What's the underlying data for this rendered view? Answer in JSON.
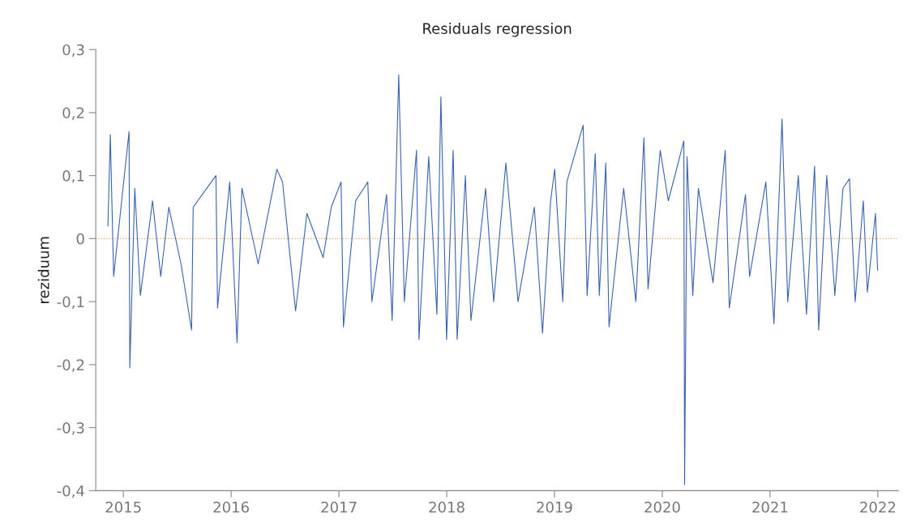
{
  "chart_data": {
    "type": "line",
    "title": "Residuals regression",
    "ylabel": "reziduum",
    "series": [
      {
        "color": "#3a62ad",
        "x": [
          2014.857,
          2014.879,
          2014.91,
          2015.053,
          2015.06,
          2015.106,
          2015.158,
          2015.271,
          2015.347,
          2015.422,
          2015.535,
          2015.633,
          2015.648,
          2015.859,
          2015.874,
          2015.987,
          2016.055,
          2016.1,
          2016.251,
          2016.424,
          2016.477,
          2016.598,
          2016.703,
          2016.854,
          2016.929,
          2017.02,
          2017.042,
          2017.155,
          2017.268,
          2017.306,
          2017.442,
          2017.494,
          2017.555,
          2017.607,
          2017.72,
          2017.743,
          2017.833,
          2017.909,
          2017.946,
          2017.999,
          2018.06,
          2018.097,
          2018.173,
          2018.225,
          2018.361,
          2018.436,
          2018.549,
          2018.662,
          2018.813,
          2018.889,
          2018.964,
          2019.002,
          2019.077,
          2019.115,
          2019.266,
          2019.303,
          2019.378,
          2019.416,
          2019.476,
          2019.506,
          2019.642,
          2019.755,
          2019.83,
          2019.868,
          2019.981,
          2020.056,
          2020.2,
          2020.207,
          2020.23,
          2020.283,
          2020.335,
          2020.471,
          2020.584,
          2020.622,
          2020.772,
          2020.81,
          2020.961,
          2021.036,
          2021.089,
          2021.111,
          2021.164,
          2021.262,
          2021.338,
          2021.413,
          2021.451,
          2021.526,
          2021.601,
          2021.677,
          2021.737,
          2021.79,
          2021.865,
          2021.903,
          2021.978,
          2021.998
        ],
        "values": [
          0.02,
          0.165,
          -0.06,
          0.17,
          -0.205,
          0.08,
          -0.09,
          0.06,
          -0.06,
          0.05,
          -0.04,
          -0.145,
          0.05,
          0.1,
          -0.11,
          0.09,
          -0.165,
          0.08,
          -0.04,
          0.11,
          0.09,
          -0.115,
          0.04,
          -0.03,
          0.05,
          0.09,
          -0.14,
          0.06,
          0.09,
          -0.1,
          0.07,
          -0.13,
          0.26,
          -0.1,
          0.14,
          -0.16,
          0.13,
          -0.12,
          0.225,
          -0.16,
          0.14,
          -0.16,
          0.1,
          -0.13,
          0.08,
          -0.1,
          0.12,
          -0.1,
          0.05,
          -0.15,
          0.06,
          0.11,
          -0.1,
          0.09,
          0.18,
          -0.09,
          0.135,
          -0.09,
          0.12,
          -0.14,
          0.08,
          -0.1,
          0.16,
          -0.08,
          0.14,
          0.06,
          0.155,
          -0.39,
          0.13,
          -0.09,
          0.08,
          -0.07,
          0.14,
          -0.11,
          0.07,
          -0.06,
          0.09,
          -0.135,
          0.09,
          0.19,
          -0.1,
          0.1,
          -0.12,
          0.115,
          -0.145,
          0.1,
          -0.09,
          0.08,
          0.095,
          -0.1,
          0.06,
          -0.085,
          0.04,
          -0.05
        ]
      }
    ],
    "xlim": [
      2014.744,
      2022.19
    ],
    "xticks": [
      2015,
      2016,
      2017,
      2018,
      2019,
      2020,
      2021,
      2022
    ],
    "ylim": [
      -0.4,
      0.3
    ],
    "yticks": [
      {
        "value": -0.4,
        "label": "-0,4"
      },
      {
        "value": -0.3,
        "label": "-0,3"
      },
      {
        "value": -0.2,
        "label": "-0,2"
      },
      {
        "value": -0.1,
        "label": "-0,1"
      },
      0,
      {
        "value": 0.1,
        "label": "0,1"
      },
      {
        "value": 0.2,
        "label": "0,2"
      },
      {
        "value": 0.3,
        "label": "0,3"
      }
    ],
    "ref_lines": [
      {
        "axis": "y",
        "value": 0,
        "color": "#e0a060",
        "line_style": "dotted"
      }
    ],
    "grid": false,
    "legend": false,
    "marker": "none",
    "line_style": "solid"
  }
}
